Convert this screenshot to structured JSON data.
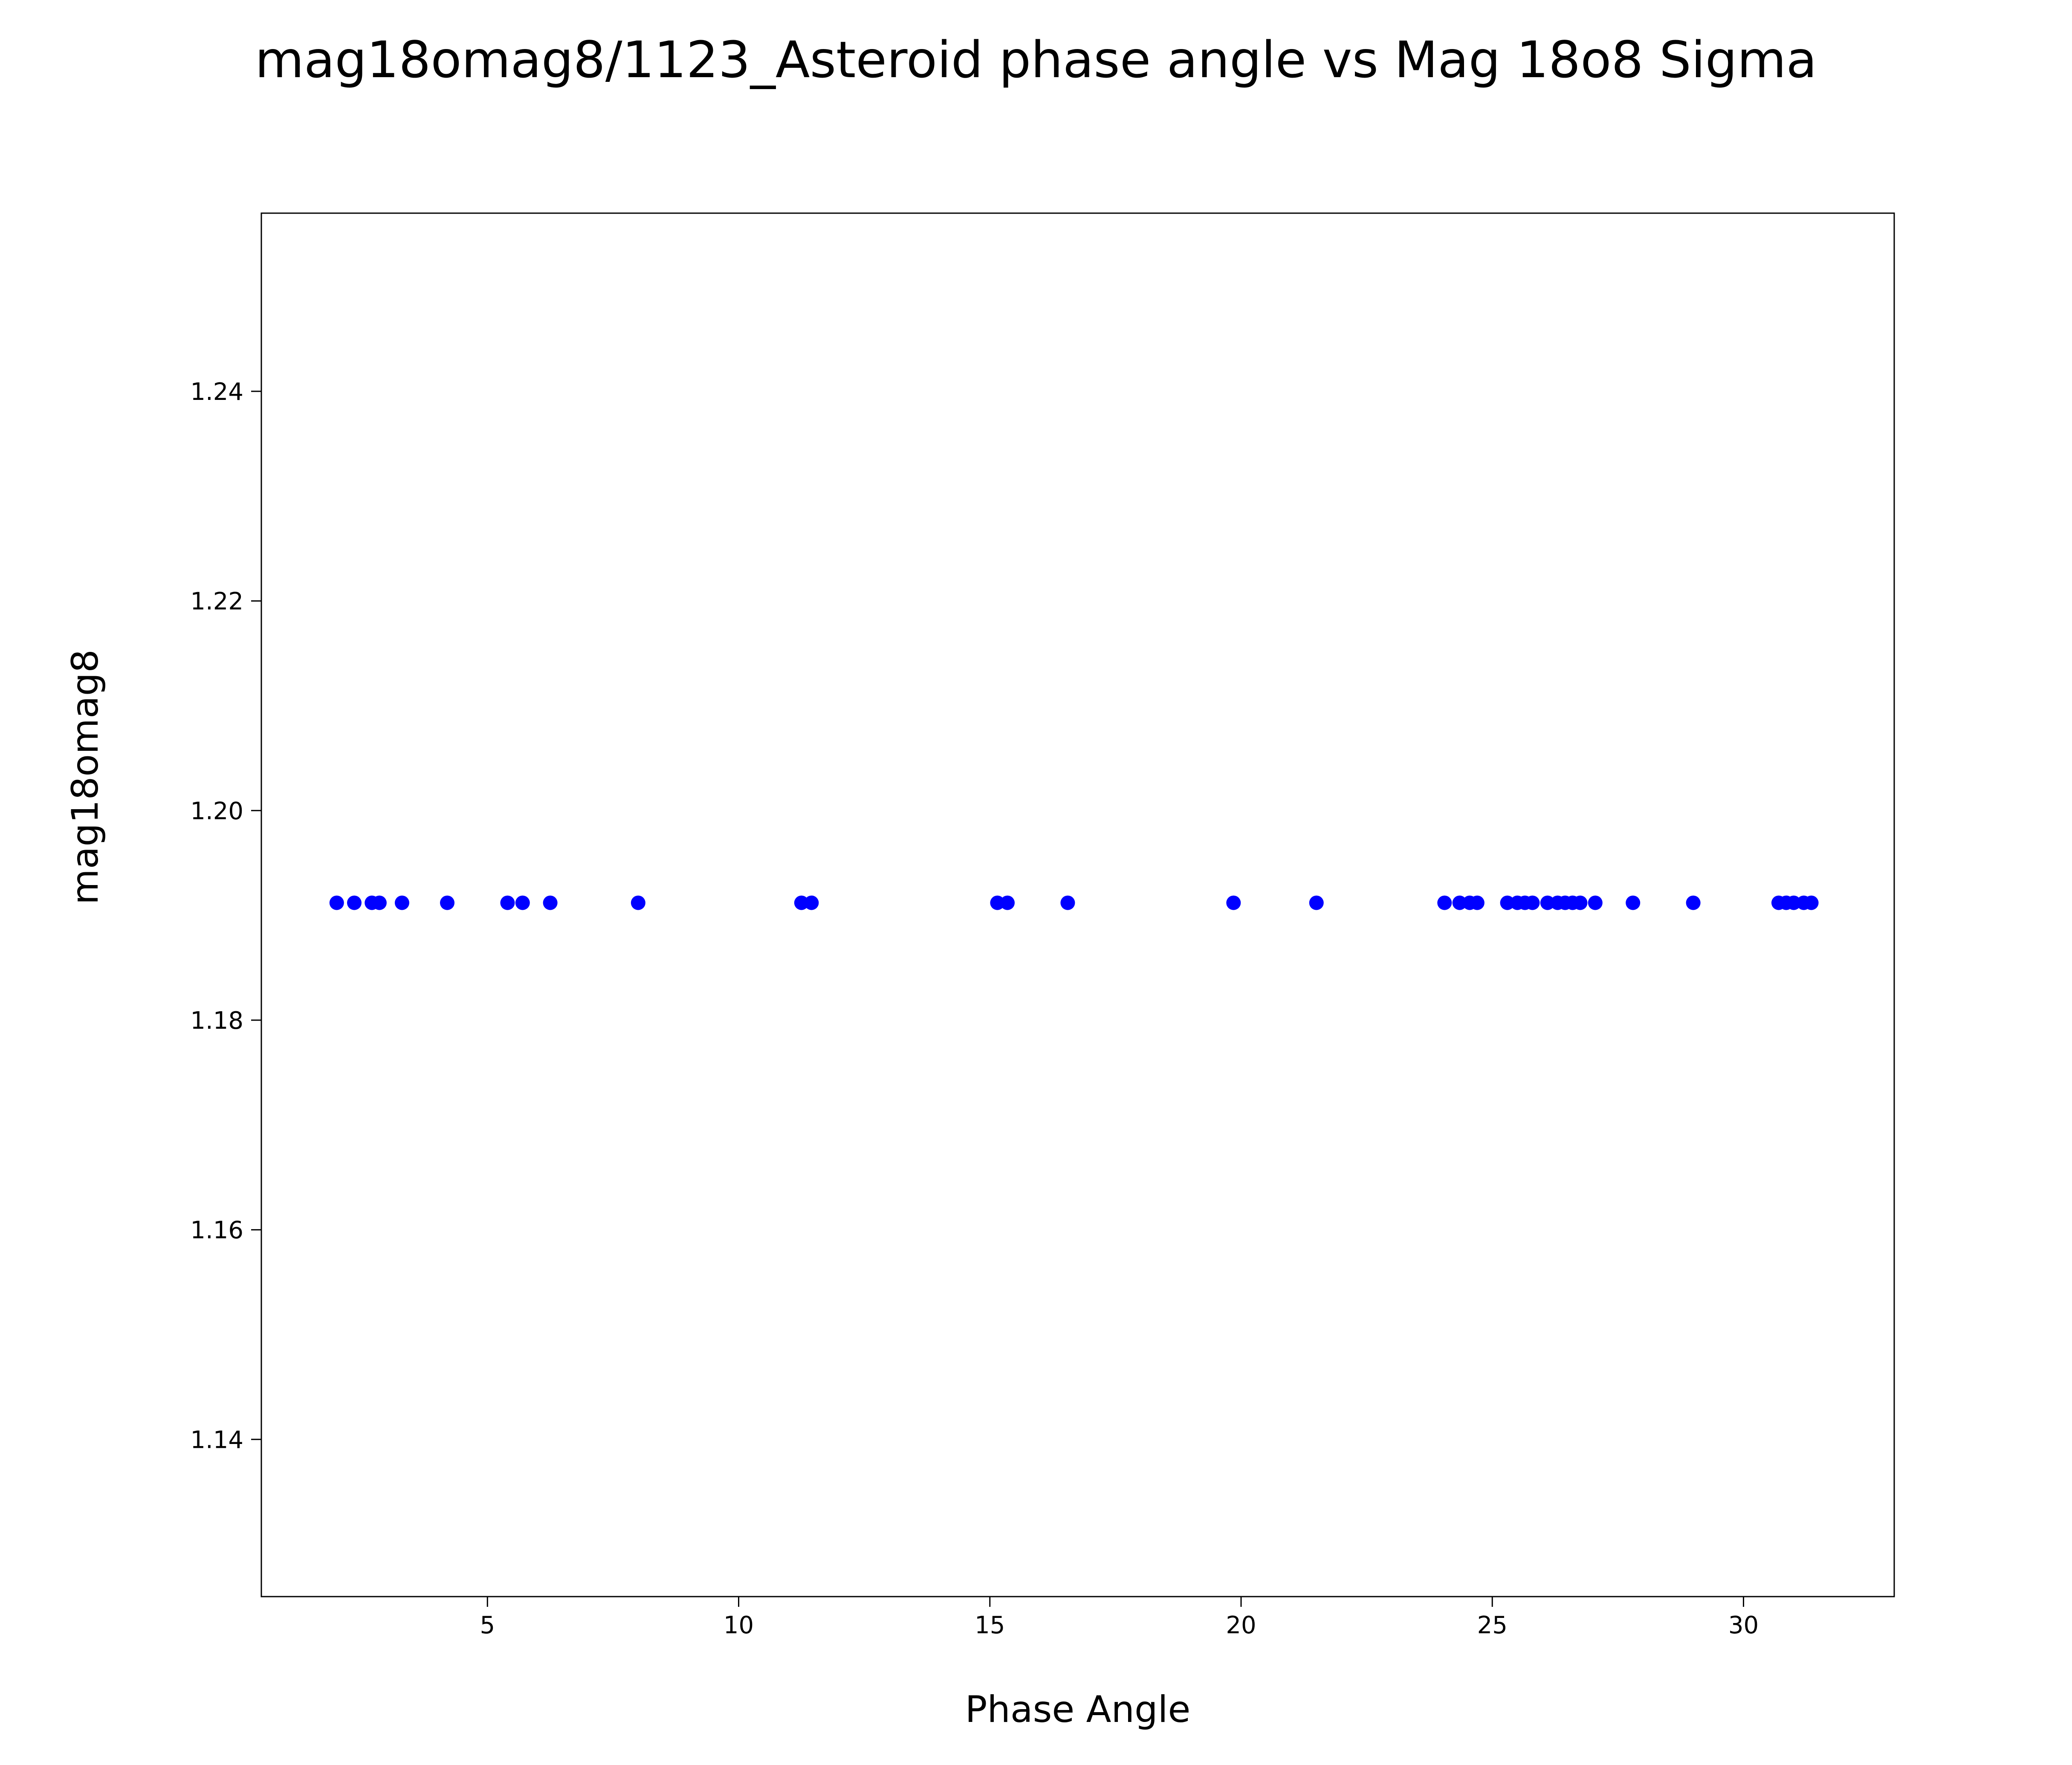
{
  "figure": {
    "title": "mag18omag8/1123_Asteroid phase angle vs Mag 18o8 Sigma"
  },
  "chart_data": {
    "type": "scatter",
    "title": "mag18omag8/1123_Asteroid phase angle vs Mag 18o8 Sigma",
    "xlabel": "Phase Angle",
    "ylabel": "mag18omag8",
    "xlim": [
      0.5,
      33.0
    ],
    "ylim": [
      1.125,
      1.257
    ],
    "xticks": [
      5,
      10,
      15,
      20,
      25,
      30
    ],
    "xtick_labels": [
      "5",
      "10",
      "15",
      "20",
      "25",
      "30"
    ],
    "yticks": [
      1.14,
      1.16,
      1.18,
      1.2,
      1.22,
      1.24
    ],
    "ytick_labels": [
      "1.14",
      "1.16",
      "1.18",
      "1.20",
      "1.22",
      "1.24"
    ],
    "grid": false,
    "legend": "none",
    "marker_color": "#0000ff",
    "marker_radius_px": 17,
    "series": [
      {
        "name": "mag18omag8",
        "x": [
          2.0,
          2.35,
          2.7,
          2.85,
          3.3,
          4.2,
          5.4,
          5.7,
          6.25,
          8.0,
          11.25,
          11.45,
          15.15,
          15.35,
          16.55,
          19.85,
          21.5,
          24.05,
          24.35,
          24.55,
          24.7,
          25.3,
          25.5,
          25.65,
          25.8,
          26.1,
          26.3,
          26.45,
          26.6,
          26.75,
          27.05,
          27.8,
          29.0,
          30.7,
          30.85,
          31.0,
          31.2,
          31.35
        ],
        "y": [
          1.1912,
          1.1912,
          1.1912,
          1.1912,
          1.1912,
          1.1912,
          1.1912,
          1.1912,
          1.1912,
          1.1912,
          1.1912,
          1.1912,
          1.1912,
          1.1912,
          1.1912,
          1.1912,
          1.1912,
          1.1912,
          1.1912,
          1.1912,
          1.1912,
          1.1912,
          1.1912,
          1.1912,
          1.1912,
          1.1912,
          1.1912,
          1.1912,
          1.1912,
          1.1912,
          1.1912,
          1.1912,
          1.1912,
          1.1912,
          1.1912,
          1.1912,
          1.1912,
          1.1912
        ]
      }
    ]
  }
}
